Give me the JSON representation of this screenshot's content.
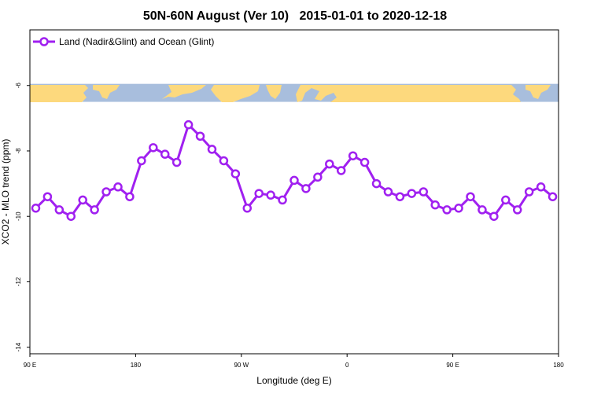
{
  "chart_data": {
    "type": "line",
    "title": "50N-60N August (Ver 10)   2015-01-01 to 2020-12-18",
    "xlabel": "Longitude (deg E)",
    "ylabel": "XCO2 - MLO trend (ppm)",
    "x_ticks": [
      {
        "value": 90,
        "label": "90 E"
      },
      {
        "value": 180,
        "label": "180"
      },
      {
        "value": 270,
        "label": "90 W"
      },
      {
        "value": 360,
        "label": "0"
      },
      {
        "value": 450,
        "label": "90 E"
      },
      {
        "value": 540,
        "label": "180"
      }
    ],
    "y_ticks": [
      {
        "value": -6,
        "label": "-6"
      },
      {
        "value": -8,
        "label": "-8"
      },
      {
        "value": -10,
        "label": "-10"
      },
      {
        "value": -12,
        "label": "-12"
      },
      {
        "value": -14,
        "label": "-14"
      }
    ],
    "xlim": [
      90,
      540
    ],
    "ylim": [
      -14.2,
      -4.3
    ],
    "legend_position": "top-left",
    "map_strip": {
      "y_top": -5.95,
      "y_bottom": -6.5
    },
    "colors": {
      "series": "#a020f0",
      "ocean": "#a8bedd",
      "land": "#fdd97d"
    },
    "series": [
      {
        "name": "Land (Nadir&Glint) and Ocean (Glint)",
        "x": [
          95,
          105,
          115,
          125,
          135,
          145,
          155,
          165,
          175,
          185,
          195,
          205,
          215,
          225,
          235,
          245,
          255,
          265,
          275,
          285,
          295,
          305,
          315,
          325,
          335,
          345,
          355,
          365,
          375,
          385,
          395,
          405,
          415,
          425,
          435,
          445,
          455,
          465,
          475,
          485,
          495,
          505,
          515,
          525,
          535
        ],
        "y": [
          -9.75,
          -9.4,
          -9.8,
          -10.0,
          -9.5,
          -9.8,
          -9.25,
          -9.1,
          -9.4,
          -8.3,
          -7.9,
          -8.1,
          -8.35,
          -7.2,
          -7.55,
          -7.95,
          -8.3,
          -8.7,
          -9.75,
          -9.3,
          -9.35,
          -9.5,
          -8.9,
          -9.15,
          -8.8,
          -8.4,
          -8.6,
          -8.15,
          -8.35,
          -9.0,
          -9.25,
          -9.4,
          -9.3,
          -9.25,
          -9.65,
          -9.8,
          -9.75,
          -9.4,
          -9.8,
          -10.0,
          -9.5,
          -9.8,
          -9.25,
          -9.1,
          -9.4
        ]
      }
    ]
  }
}
